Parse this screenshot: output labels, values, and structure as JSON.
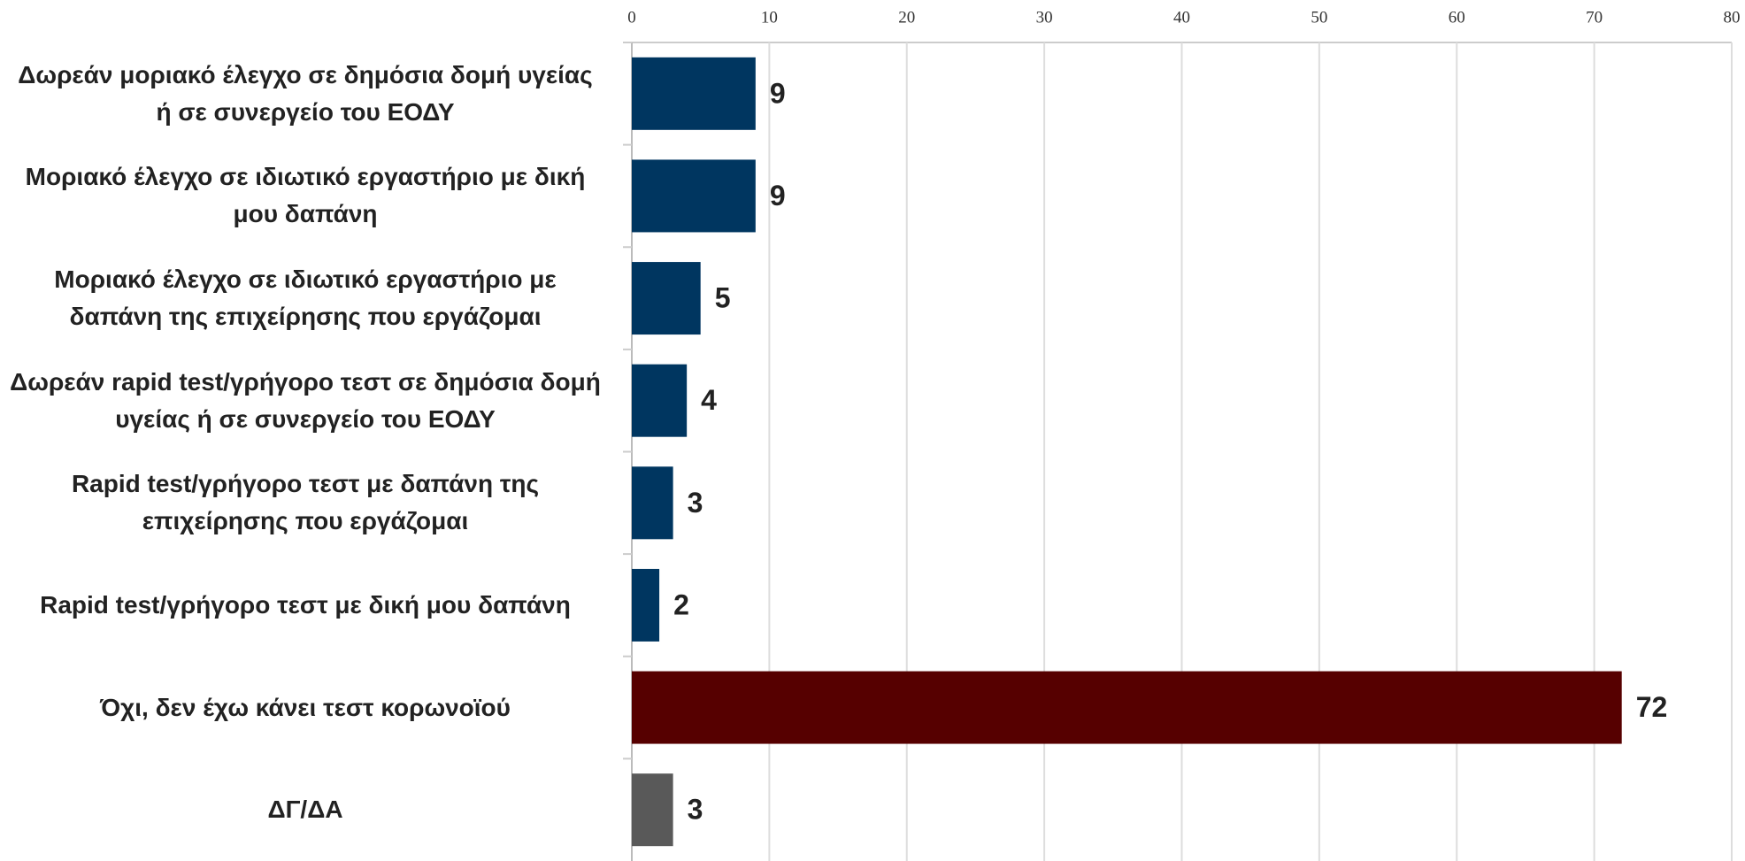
{
  "chart_data": {
    "type": "bar",
    "orientation": "horizontal",
    "categories": [
      "Δωρεάν μοριακό έλεγχο σε δημόσια δομή υγείας ή σε συνεργείο του ΕΟΔΥ",
      "Μοριακό έλεγχο σε ιδιωτικό εργαστήριο με δική μου δαπάνη",
      "Μοριακό έλεγχο σε ιδιωτικό εργαστήριο με δαπάνη της επιχείρησης που εργάζομαι",
      "Δωρεάν rapid test/γρήγορο τεστ σε δημόσια δομή υγείας ή σε συνεργείο του ΕΟΔΥ",
      "Rapid test/γρήγορο τεστ με δαπάνη της επιχείρησης που εργάζομαι",
      "Rapid test/γρήγορο τεστ με δική μου δαπάνη",
      "Όχι, δεν έχω κάνει τεστ κορωνοϊού",
      "ΔΓ/ΔΑ"
    ],
    "values": [
      9,
      9,
      5,
      4,
      3,
      2,
      72,
      3
    ],
    "colors": [
      "#003660",
      "#003660",
      "#003660",
      "#003660",
      "#003660",
      "#003660",
      "#560000",
      "#595959"
    ],
    "xlim": [
      0,
      80
    ],
    "xticks": [
      0,
      10,
      20,
      30,
      40,
      50,
      60,
      70,
      80
    ],
    "grid": true
  }
}
